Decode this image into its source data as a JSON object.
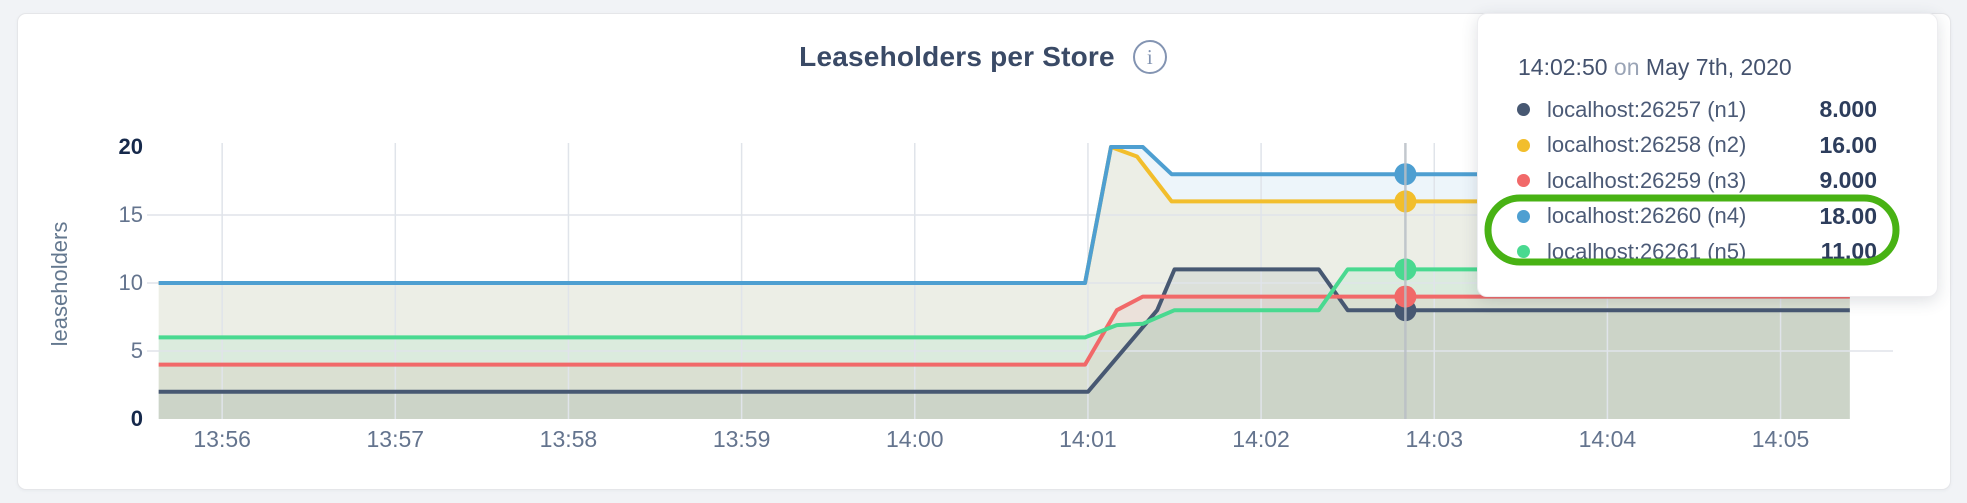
{
  "page": {
    "background": "#f1f3f6"
  },
  "chart": {
    "title": "Leaseholders per Store",
    "info_icon_glyph": "i",
    "y_axis_label": "leaseholders",
    "y_ticks": [
      {
        "value": 0,
        "label": "0",
        "bold": true
      },
      {
        "value": 5,
        "label": "5",
        "bold": false
      },
      {
        "value": 10,
        "label": "10",
        "bold": false
      },
      {
        "value": 15,
        "label": "15",
        "bold": false
      },
      {
        "value": 20,
        "label": "20",
        "bold": true
      }
    ]
  },
  "chart_data": {
    "type": "area",
    "title": "Leaseholders per Store",
    "xlabel": "",
    "ylabel": "leaseholders",
    "ylim": [
      0,
      20
    ],
    "grid": "on",
    "grid_y_values": [
      5,
      10,
      15
    ],
    "x_domain_seconds_since_13_55": [
      35,
      640
    ],
    "x_tick_seconds": [
      60,
      120,
      180,
      240,
      300,
      360,
      420,
      480,
      540,
      600
    ],
    "x_tick_labels": [
      "13:56",
      "13:57",
      "13:58",
      "13:59",
      "14:00",
      "14:01",
      "14:02",
      "14:03",
      "14:04",
      "14:05"
    ],
    "fill_opacity": 0.1,
    "series": [
      {
        "name": "localhost:26257 (n1)",
        "color": "#475872",
        "points": [
          [
            38,
            2
          ],
          [
            360,
            2
          ],
          [
            380,
            7
          ],
          [
            384,
            8
          ],
          [
            390,
            11
          ],
          [
            440,
            11
          ],
          [
            450,
            8
          ],
          [
            624,
            8
          ]
        ]
      },
      {
        "name": "localhost:26258 (n2)",
        "color": "#f2be2c",
        "points": [
          [
            38,
            10
          ],
          [
            359,
            10
          ],
          [
            368,
            20
          ],
          [
            377,
            19.3
          ],
          [
            389,
            16
          ],
          [
            624,
            16
          ]
        ]
      },
      {
        "name": "localhost:26259 (n3)",
        "color": "#f16969",
        "points": [
          [
            38,
            4
          ],
          [
            359,
            4
          ],
          [
            370,
            8
          ],
          [
            379,
            9
          ],
          [
            624,
            9
          ]
        ]
      },
      {
        "name": "localhost:26260 (n4)",
        "color": "#4e9fd1",
        "points": [
          [
            38,
            10
          ],
          [
            359,
            10
          ],
          [
            368,
            20
          ],
          [
            379,
            20
          ],
          [
            389,
            18
          ],
          [
            624,
            18
          ]
        ]
      },
      {
        "name": "localhost:26261 (n5)",
        "color": "#49d990",
        "points": [
          [
            38,
            6
          ],
          [
            359,
            6
          ],
          [
            370,
            6.9
          ],
          [
            379,
            7
          ],
          [
            390,
            8
          ],
          [
            440,
            8
          ],
          [
            450,
            11
          ],
          [
            624,
            11
          ]
        ]
      }
    ],
    "hover": {
      "time_seconds": 470,
      "time_label": "14:02:50",
      "values": [
        8,
        16,
        9,
        18,
        11
      ]
    },
    "legend_position": "tooltip-overlay"
  },
  "tooltip": {
    "time": "14:02:50",
    "connector": "on",
    "date": "May 7th, 2020",
    "rows": [
      {
        "label": "localhost:26257 (n1)",
        "value": "8.000",
        "color": "#475872",
        "highlighted": false
      },
      {
        "label": "localhost:26258 (n2)",
        "value": "16.00",
        "color": "#f2be2c",
        "highlighted": false
      },
      {
        "label": "localhost:26259 (n3)",
        "value": "9.000",
        "color": "#f16969",
        "highlighted": false
      },
      {
        "label": "localhost:26260 (n4)",
        "value": "18.00",
        "color": "#4e9fd1",
        "highlighted": true
      },
      {
        "label": "localhost:26261 (n5)",
        "value": "11.00",
        "color": "#49d990",
        "highlighted": true
      }
    ],
    "annotation_color": "#48b214"
  }
}
